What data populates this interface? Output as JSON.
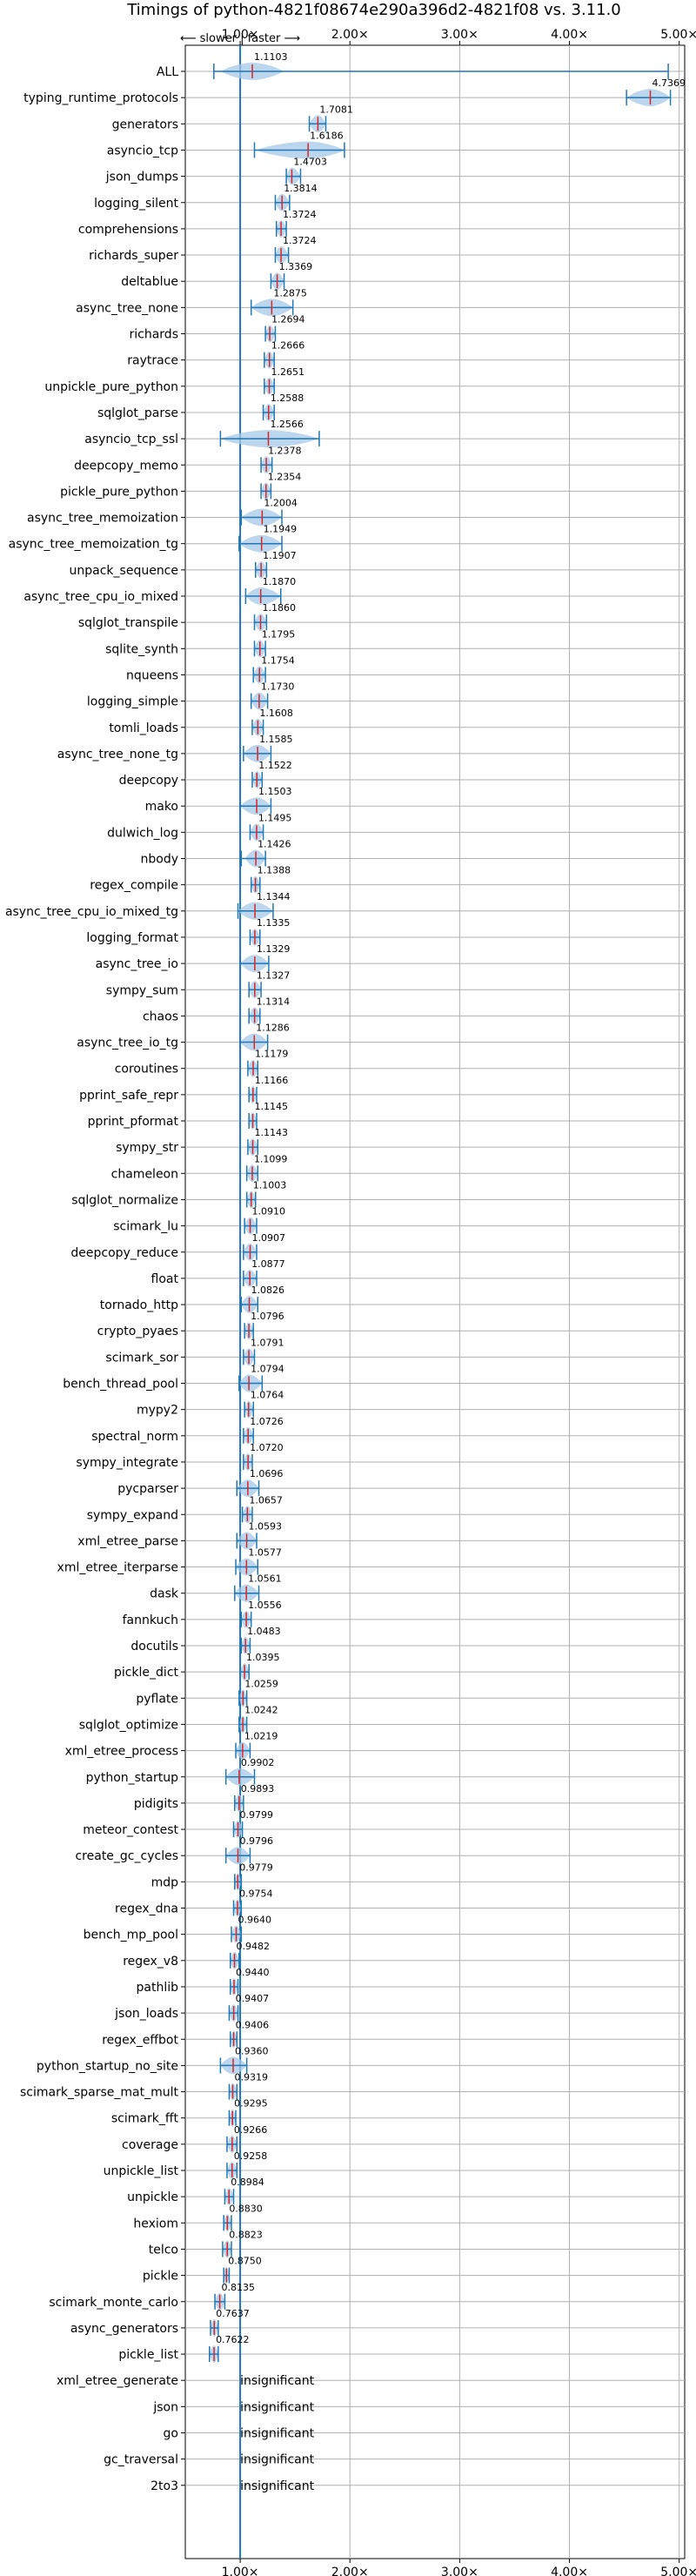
{
  "chart_data": {
    "type": "violin",
    "title": "Timings of python-4821f08674e290a396d2-4821f08 vs. 3.11.0",
    "direction_label": "⟵ slower | faster ⟶",
    "xlim": [
      0.5,
      5.05
    ],
    "x_ticks": [
      1,
      2,
      3,
      4,
      5
    ],
    "x_tick_labels": [
      "1.00×",
      "2.00×",
      "3.00×",
      "4.00×",
      "5.00×"
    ],
    "reference_line": 1.0,
    "grid": true,
    "colors": {
      "violin": "#a6c8e8",
      "line": "#1f77b4",
      "median": "#d62728",
      "grid": "#b0b0b0"
    },
    "benchmarks": [
      {
        "name": "ALL",
        "value": 1.1103,
        "label": "1.1103",
        "lo": 0.76,
        "hi": 4.9,
        "spread": 0.18
      },
      {
        "name": "typing_runtime_protocols",
        "value": 4.7369,
        "label": "4.7369",
        "lo": 4.52,
        "hi": 4.92,
        "spread": 0.22
      },
      {
        "name": "generators",
        "value": 1.7081,
        "label": "1.7081",
        "lo": 1.63,
        "hi": 1.78,
        "spread": 0.06
      },
      {
        "name": "asyncio_tcp",
        "value": 1.6186,
        "label": "1.6186",
        "lo": 1.13,
        "hi": 1.95,
        "spread": 0.3
      },
      {
        "name": "json_dumps",
        "value": 1.4703,
        "label": "1.4703",
        "lo": 1.42,
        "hi": 1.55,
        "spread": 0.06
      },
      {
        "name": "logging_silent",
        "value": 1.3814,
        "label": "1.3814",
        "lo": 1.32,
        "hi": 1.45,
        "spread": 0.05
      },
      {
        "name": "comprehensions",
        "value": 1.3724,
        "label": "1.3724",
        "lo": 1.33,
        "hi": 1.42,
        "spread": 0.05
      },
      {
        "name": "richards_super",
        "value": 1.3724,
        "label": "1.3724",
        "lo": 1.32,
        "hi": 1.44,
        "spread": 0.05
      },
      {
        "name": "deltablue",
        "value": 1.3369,
        "label": "1.3369",
        "lo": 1.28,
        "hi": 1.4,
        "spread": 0.05
      },
      {
        "name": "async_tree_none",
        "value": 1.2875,
        "label": "1.2875",
        "lo": 1.1,
        "hi": 1.48,
        "spread": 0.2
      },
      {
        "name": "richards",
        "value": 1.2694,
        "label": "1.2694",
        "lo": 1.23,
        "hi": 1.32,
        "spread": 0.05
      },
      {
        "name": "raytrace",
        "value": 1.2666,
        "label": "1.2666",
        "lo": 1.22,
        "hi": 1.31,
        "spread": 0.05
      },
      {
        "name": "unpickle_pure_python",
        "value": 1.2651,
        "label": "1.2651",
        "lo": 1.22,
        "hi": 1.31,
        "spread": 0.05
      },
      {
        "name": "sqlglot_parse",
        "value": 1.2588,
        "label": "1.2588",
        "lo": 1.21,
        "hi": 1.31,
        "spread": 0.05
      },
      {
        "name": "asyncio_tcp_ssl",
        "value": 1.2566,
        "label": "1.2566",
        "lo": 0.82,
        "hi": 1.72,
        "spread": 0.35
      },
      {
        "name": "deepcopy_memo",
        "value": 1.2378,
        "label": "1.2378",
        "lo": 1.19,
        "hi": 1.29,
        "spread": 0.05
      },
      {
        "name": "pickle_pure_python",
        "value": 1.2354,
        "label": "1.2354",
        "lo": 1.19,
        "hi": 1.28,
        "spread": 0.05
      },
      {
        "name": "async_tree_memoization",
        "value": 1.2004,
        "label": "1.2004",
        "lo": 1.01,
        "hi": 1.38,
        "spread": 0.18
      },
      {
        "name": "async_tree_memoization_tg",
        "value": 1.1949,
        "label": "1.1949",
        "lo": 0.99,
        "hi": 1.38,
        "spread": 0.18
      },
      {
        "name": "unpack_sequence",
        "value": 1.1907,
        "label": "1.1907",
        "lo": 1.14,
        "hi": 1.24,
        "spread": 0.05
      },
      {
        "name": "async_tree_cpu_io_mixed",
        "value": 1.187,
        "label": "1.1870",
        "lo": 1.05,
        "hi": 1.37,
        "spread": 0.15
      },
      {
        "name": "sqlglot_transpile",
        "value": 1.186,
        "label": "1.1860",
        "lo": 1.13,
        "hi": 1.24,
        "spread": 0.05
      },
      {
        "name": "sqlite_synth",
        "value": 1.1795,
        "label": "1.1795",
        "lo": 1.13,
        "hi": 1.23,
        "spread": 0.05
      },
      {
        "name": "nqueens",
        "value": 1.1754,
        "label": "1.1754",
        "lo": 1.12,
        "hi": 1.23,
        "spread": 0.05
      },
      {
        "name": "logging_simple",
        "value": 1.173,
        "label": "1.1730",
        "lo": 1.1,
        "hi": 1.25,
        "spread": 0.06
      },
      {
        "name": "tomli_loads",
        "value": 1.1608,
        "label": "1.1608",
        "lo": 1.11,
        "hi": 1.21,
        "spread": 0.05
      },
      {
        "name": "async_tree_none_tg",
        "value": 1.1585,
        "label": "1.1585",
        "lo": 1.03,
        "hi": 1.28,
        "spread": 0.12
      },
      {
        "name": "deepcopy",
        "value": 1.1522,
        "label": "1.1522",
        "lo": 1.11,
        "hi": 1.2,
        "spread": 0.04
      },
      {
        "name": "mako",
        "value": 1.1503,
        "label": "1.1503",
        "lo": 1.0,
        "hi": 1.28,
        "spread": 0.1
      },
      {
        "name": "dulwich_log",
        "value": 1.1495,
        "label": "1.1495",
        "lo": 1.09,
        "hi": 1.21,
        "spread": 0.05
      },
      {
        "name": "nbody",
        "value": 1.1426,
        "label": "1.1426",
        "lo": 1.01,
        "hi": 1.23,
        "spread": 0.06
      },
      {
        "name": "regex_compile",
        "value": 1.1388,
        "label": "1.1388",
        "lo": 1.1,
        "hi": 1.18,
        "spread": 0.04
      },
      {
        "name": "async_tree_cpu_io_mixed_tg",
        "value": 1.1344,
        "label": "1.1344",
        "lo": 0.98,
        "hi": 1.3,
        "spread": 0.15
      },
      {
        "name": "logging_format",
        "value": 1.1335,
        "label": "1.1335",
        "lo": 1.09,
        "hi": 1.18,
        "spread": 0.04
      },
      {
        "name": "async_tree_io",
        "value": 1.1329,
        "label": "1.1329",
        "lo": 1.0,
        "hi": 1.26,
        "spread": 0.12
      },
      {
        "name": "sympy_sum",
        "value": 1.1327,
        "label": "1.1327",
        "lo": 1.08,
        "hi": 1.19,
        "spread": 0.05
      },
      {
        "name": "chaos",
        "value": 1.1314,
        "label": "1.1314",
        "lo": 1.08,
        "hi": 1.18,
        "spread": 0.05
      },
      {
        "name": "async_tree_io_tg",
        "value": 1.1286,
        "label": "1.1286",
        "lo": 1.0,
        "hi": 1.25,
        "spread": 0.12
      },
      {
        "name": "coroutines",
        "value": 1.1179,
        "label": "1.1179",
        "lo": 1.07,
        "hi": 1.16,
        "spread": 0.04
      },
      {
        "name": "pprint_safe_repr",
        "value": 1.1166,
        "label": "1.1166",
        "lo": 1.08,
        "hi": 1.15,
        "spread": 0.04
      },
      {
        "name": "pprint_pformat",
        "value": 1.1145,
        "label": "1.1145",
        "lo": 1.08,
        "hi": 1.15,
        "spread": 0.04
      },
      {
        "name": "sympy_str",
        "value": 1.1143,
        "label": "1.1143",
        "lo": 1.07,
        "hi": 1.16,
        "spread": 0.04
      },
      {
        "name": "chameleon",
        "value": 1.1099,
        "label": "1.1099",
        "lo": 1.06,
        "hi": 1.16,
        "spread": 0.05
      },
      {
        "name": "sqlglot_normalize",
        "value": 1.1003,
        "label": "1.1003",
        "lo": 1.06,
        "hi": 1.14,
        "spread": 0.04
      },
      {
        "name": "scimark_lu",
        "value": 1.091,
        "label": "1.0910",
        "lo": 1.04,
        "hi": 1.15,
        "spread": 0.05
      },
      {
        "name": "deepcopy_reduce",
        "value": 1.0907,
        "label": "1.0907",
        "lo": 1.03,
        "hi": 1.15,
        "spread": 0.05
      },
      {
        "name": "float",
        "value": 1.0877,
        "label": "1.0877",
        "lo": 1.03,
        "hi": 1.15,
        "spread": 0.05
      },
      {
        "name": "tornado_http",
        "value": 1.0826,
        "label": "1.0826",
        "lo": 1.01,
        "hi": 1.16,
        "spread": 0.06
      },
      {
        "name": "crypto_pyaes",
        "value": 1.0796,
        "label": "1.0796",
        "lo": 1.04,
        "hi": 1.12,
        "spread": 0.04
      },
      {
        "name": "scimark_sor",
        "value": 1.0791,
        "label": "1.0791",
        "lo": 1.03,
        "hi": 1.13,
        "spread": 0.05
      },
      {
        "name": "bench_thread_pool",
        "value": 1.0794,
        "label": "1.0794",
        "lo": 0.99,
        "hi": 1.2,
        "spread": 0.08
      },
      {
        "name": "mypy2",
        "value": 1.0764,
        "label": "1.0764",
        "lo": 1.04,
        "hi": 1.12,
        "spread": 0.04
      },
      {
        "name": "spectral_norm",
        "value": 1.0726,
        "label": "1.0726",
        "lo": 1.03,
        "hi": 1.12,
        "spread": 0.04
      },
      {
        "name": "sympy_integrate",
        "value": 1.072,
        "label": "1.0720",
        "lo": 1.03,
        "hi": 1.11,
        "spread": 0.04
      },
      {
        "name": "pycparser",
        "value": 1.0696,
        "label": "1.0696",
        "lo": 0.97,
        "hi": 1.17,
        "spread": 0.08
      },
      {
        "name": "sympy_expand",
        "value": 1.0657,
        "label": "1.0657",
        "lo": 1.02,
        "hi": 1.11,
        "spread": 0.04
      },
      {
        "name": "xml_etree_parse",
        "value": 1.0593,
        "label": "1.0593",
        "lo": 0.97,
        "hi": 1.15,
        "spread": 0.07
      },
      {
        "name": "xml_etree_iterparse",
        "value": 1.0577,
        "label": "1.0577",
        "lo": 0.96,
        "hi": 1.16,
        "spread": 0.07
      },
      {
        "name": "dask",
        "value": 1.0561,
        "label": "1.0561",
        "lo": 0.95,
        "hi": 1.17,
        "spread": 0.08
      },
      {
        "name": "fannkuch",
        "value": 1.0556,
        "label": "1.0556",
        "lo": 1.01,
        "hi": 1.1,
        "spread": 0.04
      },
      {
        "name": "docutils",
        "value": 1.0483,
        "label": "1.0483",
        "lo": 1.01,
        "hi": 1.09,
        "spread": 0.04
      },
      {
        "name": "pickle_dict",
        "value": 1.0395,
        "label": "1.0395",
        "lo": 1.0,
        "hi": 1.08,
        "spread": 0.04
      },
      {
        "name": "pyflate",
        "value": 1.0259,
        "label": "1.0259",
        "lo": 0.99,
        "hi": 1.06,
        "spread": 0.04
      },
      {
        "name": "sqlglot_optimize",
        "value": 1.0242,
        "label": "1.0242",
        "lo": 0.99,
        "hi": 1.06,
        "spread": 0.04
      },
      {
        "name": "xml_etree_process",
        "value": 1.0219,
        "label": "1.0219",
        "lo": 0.96,
        "hi": 1.09,
        "spread": 0.06
      },
      {
        "name": "python_startup",
        "value": 0.9902,
        "label": "0.9902",
        "lo": 0.87,
        "hi": 1.13,
        "spread": 0.09
      },
      {
        "name": "pidigits",
        "value": 0.9893,
        "label": "0.9893",
        "lo": 0.95,
        "hi": 1.03,
        "spread": 0.04
      },
      {
        "name": "meteor_contest",
        "value": 0.9799,
        "label": "0.9799",
        "lo": 0.94,
        "hi": 1.02,
        "spread": 0.04
      },
      {
        "name": "create_gc_cycles",
        "value": 0.9796,
        "label": "0.9796",
        "lo": 0.87,
        "hi": 1.09,
        "spread": 0.1
      },
      {
        "name": "mdp",
        "value": 0.9779,
        "label": "0.9779",
        "lo": 0.95,
        "hi": 1.01,
        "spread": 0.03
      },
      {
        "name": "regex_dna",
        "value": 0.9754,
        "label": "0.9754",
        "lo": 0.94,
        "hi": 1.01,
        "spread": 0.03
      },
      {
        "name": "bench_mp_pool",
        "value": 0.964,
        "label": "0.9640",
        "lo": 0.92,
        "hi": 1.01,
        "spread": 0.04
      },
      {
        "name": "regex_v8",
        "value": 0.9482,
        "label": "0.9482",
        "lo": 0.91,
        "hi": 0.99,
        "spread": 0.04
      },
      {
        "name": "pathlib",
        "value": 0.944,
        "label": "0.9440",
        "lo": 0.91,
        "hi": 0.98,
        "spread": 0.04
      },
      {
        "name": "json_loads",
        "value": 0.9407,
        "label": "0.9407",
        "lo": 0.9,
        "hi": 0.98,
        "spread": 0.04
      },
      {
        "name": "regex_effbot",
        "value": 0.9406,
        "label": "0.9406",
        "lo": 0.91,
        "hi": 0.97,
        "spread": 0.03
      },
      {
        "name": "python_startup_no_site",
        "value": 0.936,
        "label": "0.9360",
        "lo": 0.82,
        "hi": 1.06,
        "spread": 0.09
      },
      {
        "name": "scimark_sparse_mat_mult",
        "value": 0.9319,
        "label": "0.9319",
        "lo": 0.9,
        "hi": 0.97,
        "spread": 0.03
      },
      {
        "name": "scimark_fft",
        "value": 0.9295,
        "label": "0.9295",
        "lo": 0.9,
        "hi": 0.96,
        "spread": 0.03
      },
      {
        "name": "coverage",
        "value": 0.9266,
        "label": "0.9266",
        "lo": 0.88,
        "hi": 0.97,
        "spread": 0.04
      },
      {
        "name": "unpickle_list",
        "value": 0.9258,
        "label": "0.9258",
        "lo": 0.88,
        "hi": 0.97,
        "spread": 0.04
      },
      {
        "name": "unpickle",
        "value": 0.8984,
        "label": "0.8984",
        "lo": 0.86,
        "hi": 0.94,
        "spread": 0.03
      },
      {
        "name": "hexiom",
        "value": 0.883,
        "label": "0.8830",
        "lo": 0.85,
        "hi": 0.92,
        "spread": 0.03
      },
      {
        "name": "telco",
        "value": 0.8823,
        "label": "0.8823",
        "lo": 0.84,
        "hi": 0.92,
        "spread": 0.04
      },
      {
        "name": "pickle",
        "value": 0.875,
        "label": "0.8750",
        "lo": 0.85,
        "hi": 0.9,
        "spread": 0.02
      },
      {
        "name": "scimark_monte_carlo",
        "value": 0.8135,
        "label": "0.8135",
        "lo": 0.77,
        "hi": 0.86,
        "spread": 0.04
      },
      {
        "name": "async_generators",
        "value": 0.7637,
        "label": "0.7637",
        "lo": 0.73,
        "hi": 0.8,
        "spread": 0.03
      },
      {
        "name": "pickle_list",
        "value": 0.7622,
        "label": "0.7622",
        "lo": 0.72,
        "hi": 0.8,
        "spread": 0.03
      },
      {
        "name": "xml_etree_generate",
        "insignificant": true
      },
      {
        "name": "json",
        "insignificant": true
      },
      {
        "name": "go",
        "insignificant": true
      },
      {
        "name": "gc_traversal",
        "insignificant": true
      },
      {
        "name": "2to3",
        "insignificant": true
      }
    ],
    "insignificant_label": "insignificant"
  }
}
